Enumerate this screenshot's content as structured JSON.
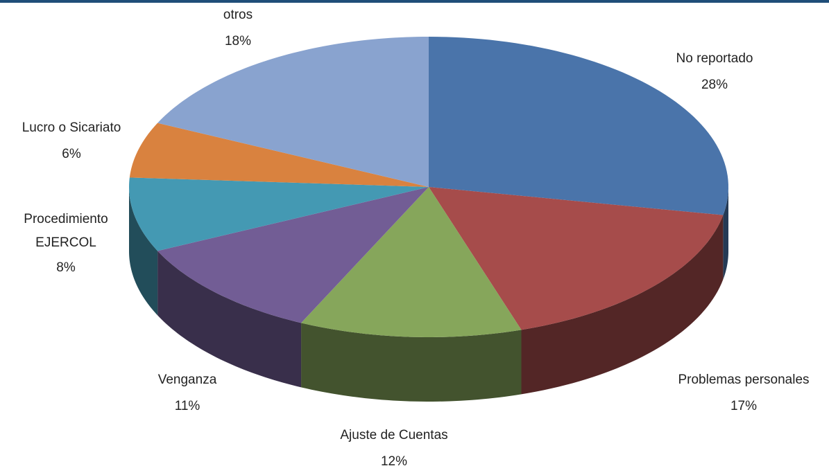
{
  "chart_data": {
    "type": "pie",
    "categories": [
      "No reportado",
      "Problemas personales",
      "Ajuste de Cuentas",
      "Venganza",
      "Procedimiento EJERCOL",
      "Lucro o Sicariato",
      "otros"
    ],
    "values": [
      28,
      17,
      12,
      11,
      8,
      6,
      18
    ],
    "value_labels": [
      "28%",
      "17%",
      "12%",
      "11%",
      "8%",
      "6%",
      "18%"
    ],
    "colors": [
      "#4a74aa",
      "#a64c4b",
      "#86a65b",
      "#725d95",
      "#4499b3",
      "#d9823f",
      "#89a3cf"
    ]
  }
}
